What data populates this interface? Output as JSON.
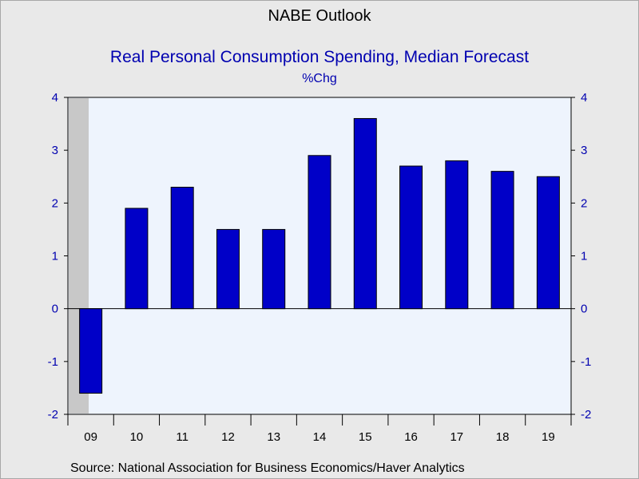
{
  "header": {
    "title": "NABE Outlook",
    "subtitle": "Real Personal Consumption Spending, Median Forecast",
    "unit": "%Chg"
  },
  "footer": {
    "source": "Source:  National Association for Business Economics/Haver Analytics"
  },
  "colors": {
    "bar": "#0000c8",
    "text": "#0000b0",
    "plot_bg": "#eef4fd",
    "recession_shade": "#c8c8c8"
  },
  "chart_data": {
    "type": "bar",
    "title": "Real Personal Consumption Spending, Median Forecast",
    "ylabel": "%Chg",
    "categories": [
      "09",
      "10",
      "11",
      "12",
      "13",
      "14",
      "15",
      "16",
      "17",
      "18",
      "19"
    ],
    "values": [
      -1.6,
      1.9,
      2.3,
      1.5,
      1.5,
      2.9,
      3.6,
      2.7,
      2.8,
      2.6,
      2.5
    ],
    "ylim": [
      -2,
      4
    ],
    "yticks": [
      4,
      3,
      2,
      1,
      0,
      -1,
      -2
    ],
    "y_axis_both_sides": true,
    "grid": false,
    "shaded_category": "09"
  }
}
